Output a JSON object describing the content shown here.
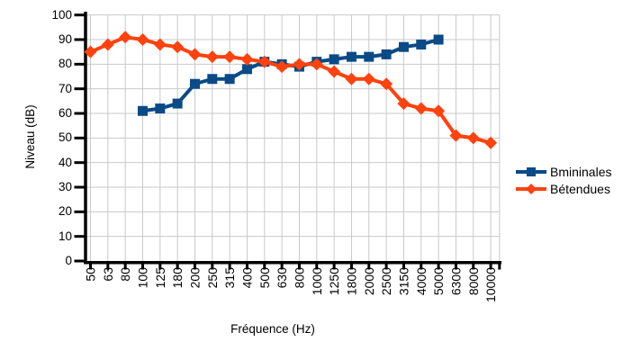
{
  "chart_data": {
    "type": "line",
    "title": "",
    "xlabel": "Fréquence (Hz)",
    "ylabel": "Niveau (dB)",
    "categories": [
      "50",
      "63",
      "80",
      "100",
      "125",
      "180",
      "200",
      "250",
      "315",
      "400",
      "500",
      "630",
      "800",
      "1000",
      "1250",
      "1800",
      "2000",
      "2500",
      "3150",
      "4000",
      "5000",
      "6300",
      "8000",
      "10000"
    ],
    "series": [
      {
        "name": "Bmininales",
        "color": "#0A4A87",
        "marker": "square",
        "values": [
          null,
          null,
          null,
          61,
          62,
          64,
          72,
          74,
          74,
          78,
          81,
          80,
          79,
          81,
          82,
          83,
          83,
          84,
          87,
          88,
          90,
          null,
          null,
          null
        ]
      },
      {
        "name": "Bétendues",
        "color": "#FF420E",
        "marker": "diamond",
        "values": [
          85,
          88,
          91,
          90,
          88,
          87,
          84,
          83,
          83,
          82,
          81,
          79,
          80,
          80,
          77,
          74,
          74,
          72,
          64,
          62,
          61,
          51,
          50,
          48
        ]
      }
    ],
    "ylim": [
      0,
      100
    ],
    "ytick_step": 10,
    "y_tick_labels": [
      "0",
      "10",
      "20",
      "30",
      "40",
      "50",
      "60",
      "70",
      "80",
      "90",
      "100"
    ],
    "grid": true,
    "legend_position": "right",
    "x_label_rotation_degrees": 90
  },
  "colors": {
    "grid": "#c9c9c9",
    "axis": "#000000",
    "text": "#000000",
    "background": "#ffffff"
  }
}
